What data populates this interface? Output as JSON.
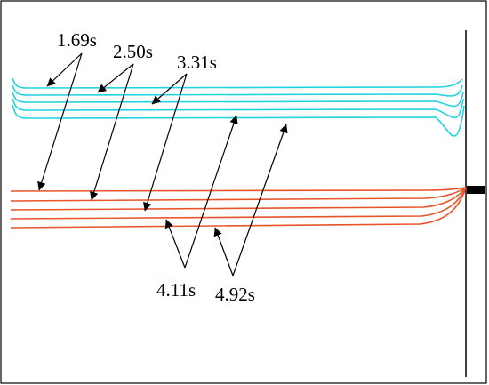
{
  "colors": {
    "upper_curves": "#22d3e0",
    "lower_curves": "#e8542a",
    "ink": "#000000",
    "background": "#ffffff"
  },
  "time_labels": {
    "t1": "1.69s",
    "t2": "2.50s",
    "t3": "3.31s",
    "t4": "4.11s",
    "t5": "4.92s"
  }
}
